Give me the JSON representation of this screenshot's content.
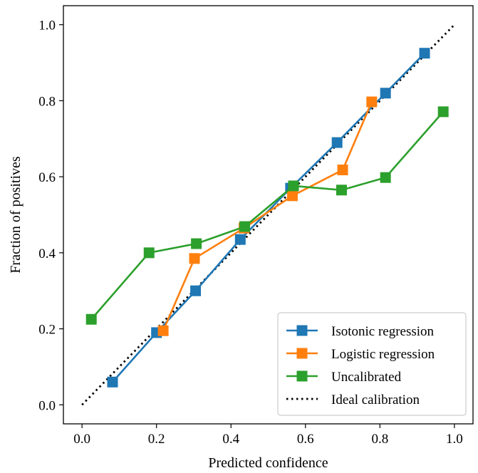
{
  "chart_data": {
    "type": "line",
    "title": "",
    "xlabel": "Predicted confidence",
    "ylabel": "Fraction of positives",
    "xlim": [
      -0.05,
      1.05
    ],
    "ylim": [
      -0.05,
      1.05
    ],
    "xticks": [
      0.0,
      0.2,
      0.4,
      0.6,
      0.8,
      1.0
    ],
    "yticks": [
      0.0,
      0.2,
      0.4,
      0.6,
      0.8,
      1.0
    ],
    "tick_labels_x": [
      "0.0",
      "0.2",
      "0.4",
      "0.6",
      "0.8",
      "1.0"
    ],
    "tick_labels_y": [
      "0.0",
      "0.2",
      "0.4",
      "0.6",
      "0.8",
      "1.0"
    ],
    "grid": false,
    "legend_position": "lower-right",
    "series": [
      {
        "name": "Isotonic regression",
        "color": "#1f77b4",
        "marker": "square",
        "style": "solid",
        "x": [
          0.082,
          0.2,
          0.305,
          0.425,
          0.56,
          0.685,
          0.815,
          0.92
        ],
        "y": [
          0.06,
          0.19,
          0.3,
          0.435,
          0.57,
          0.69,
          0.82,
          0.925
        ]
      },
      {
        "name": "Logistic regression",
        "color": "#ff7f0e",
        "marker": "square",
        "style": "solid",
        "x": [
          0.218,
          0.302,
          0.435,
          0.565,
          0.7,
          0.778
        ],
        "y": [
          0.195,
          0.385,
          0.465,
          0.55,
          0.618,
          0.797
        ]
      },
      {
        "name": "Uncalibrated",
        "color": "#2ca02c",
        "marker": "square",
        "style": "solid",
        "x": [
          0.025,
          0.18,
          0.307,
          0.437,
          0.568,
          0.697,
          0.815,
          0.97
        ],
        "y": [
          0.225,
          0.4,
          0.424,
          0.469,
          0.576,
          0.565,
          0.598,
          0.771
        ]
      },
      {
        "name": "Ideal calibration",
        "color": "#000000",
        "marker": "none",
        "style": "dotted",
        "x": [
          0.0,
          1.0
        ],
        "y": [
          0.0,
          1.0
        ]
      }
    ]
  }
}
